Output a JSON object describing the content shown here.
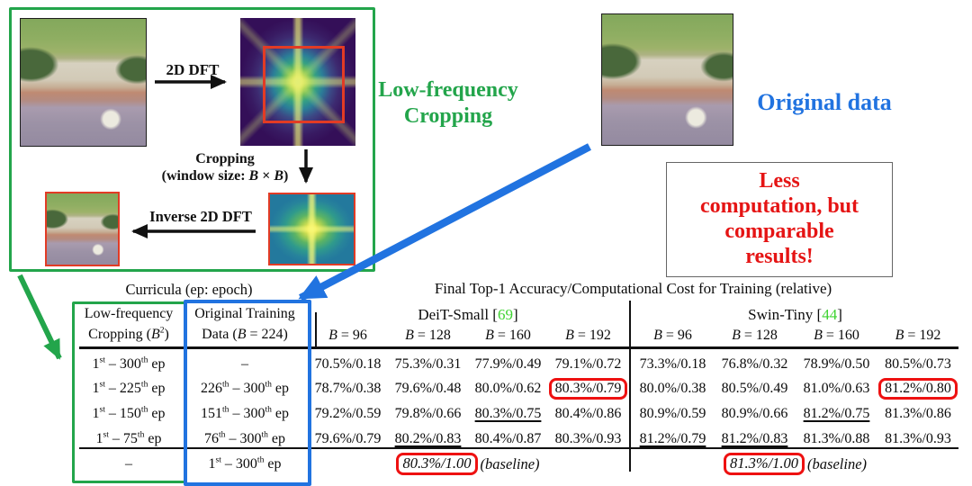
{
  "accent_colors": {
    "green": "#23a54b",
    "blue": "#2173e0",
    "red_text": "#e51414",
    "highlight_red": "#ee1111",
    "cite_green": "#3ed331"
  },
  "diagram": {
    "dft_arrow_label": "2D DFT",
    "crop_label_line1": "Cropping",
    "crop_label_line2_html": "(window size: <i>B</i> × <i>B</i>)",
    "inverse_arrow_label": "Inverse 2D DFT",
    "lf_title_line1": "Low-frequency",
    "lf_title_line2": "Cropping",
    "original_data_label": "Original data",
    "callout_lines": [
      "Less",
      "computation, but",
      "comparable",
      "results!"
    ]
  },
  "table": {
    "curricula_header": "Curricula (ep: epoch)",
    "results_header": "Final Top-1 Accuracy/Computational Cost for Training (relative)",
    "lf_col_header_html": "Low-frequency<br>Cropping (<i>B</i><sup>2</sup>)",
    "orig_col_header_html": "Original Training<br>Data (<i>B</i> = 224)",
    "deit": {
      "header_html": "DeiT-Small [<span class='cite'>69</span>]",
      "b_labels_html": [
        "<i>B</i> = 96",
        "<i>B</i> = 128",
        "<i>B</i> = 160",
        "<i>B</i> = 192"
      ]
    },
    "swin": {
      "header_html": "Swin-Tiny [<span class='cite'>44</span>]",
      "b_labels_html": [
        "<i>B</i> = 96",
        "<i>B</i> = 128",
        "<i>B</i> = 160",
        "<i>B</i> = 192"
      ]
    },
    "rows": [
      {
        "lf_html": "1<sup>st</sup> – 300<sup>th</sup> ep",
        "orig_html": "–",
        "deit": [
          "70.5%/0.18",
          "75.3%/0.31",
          "77.9%/0.49",
          "79.1%/0.72"
        ],
        "swin": [
          "73.3%/0.18",
          "76.8%/0.32",
          "78.9%/0.50",
          "80.5%/0.73"
        ]
      },
      {
        "lf_html": "1<sup>st</sup> – 225<sup>th</sup> ep",
        "orig_html": "226<sup>th</sup> – 300<sup>th</sup> ep",
        "deit": [
          "78.7%/0.38",
          "79.6%/0.48",
          "80.0%/0.62",
          "80.3%/0.79"
        ],
        "swin": [
          "80.0%/0.38",
          "80.5%/0.49",
          "81.0%/0.63",
          "81.2%/0.80"
        ]
      },
      {
        "lf_html": "1<sup>st</sup> – 150<sup>th</sup> ep",
        "orig_html": "151<sup>th</sup> – 300<sup>th</sup> ep",
        "deit": [
          "79.2%/0.59",
          "79.8%/0.66",
          "80.3%/0.75",
          "80.4%/0.86"
        ],
        "swin": [
          "80.9%/0.59",
          "80.9%/0.66",
          "81.2%/0.75",
          "81.3%/0.86"
        ]
      },
      {
        "lf_html": "1<sup>st</sup> – 75<sup>th</sup> ep",
        "orig_html": "76<sup>th</sup> – 300<sup>th</sup> ep",
        "deit": [
          "79.6%/0.79",
          "80.2%/0.83",
          "80.4%/0.87",
          "80.3%/0.93"
        ],
        "swin": [
          "81.2%/0.79",
          "81.2%/0.83",
          "81.3%/0.88",
          "81.3%/0.93"
        ]
      }
    ],
    "baseline": {
      "lf": "–",
      "orig_html": "1<sup>st</sup> – 300<sup>th</sup> ep",
      "deit_value": "80.3%/1.00",
      "swin_value": "81.3%/1.00",
      "suffix": "(baseline)"
    }
  }
}
